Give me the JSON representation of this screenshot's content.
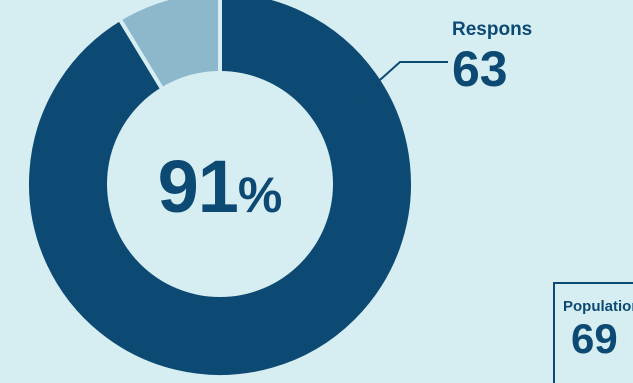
{
  "chart_data": {
    "type": "pie",
    "style": "donut",
    "center_value": "91",
    "center_unit": "%",
    "slices": [
      {
        "label": "Respons",
        "value": 63,
        "color": "#0d4a73"
      },
      {
        "label": "",
        "value": 6,
        "color": "#8db8cc"
      }
    ],
    "annotations": [
      {
        "title": "Respons",
        "value": "63"
      },
      {
        "title": "Population",
        "value": "69"
      }
    ]
  },
  "colors": {
    "background": "#d6eef2",
    "primary": "#0d4a73",
    "secondary": "#8db8cc",
    "inner": "#d6eef2"
  }
}
